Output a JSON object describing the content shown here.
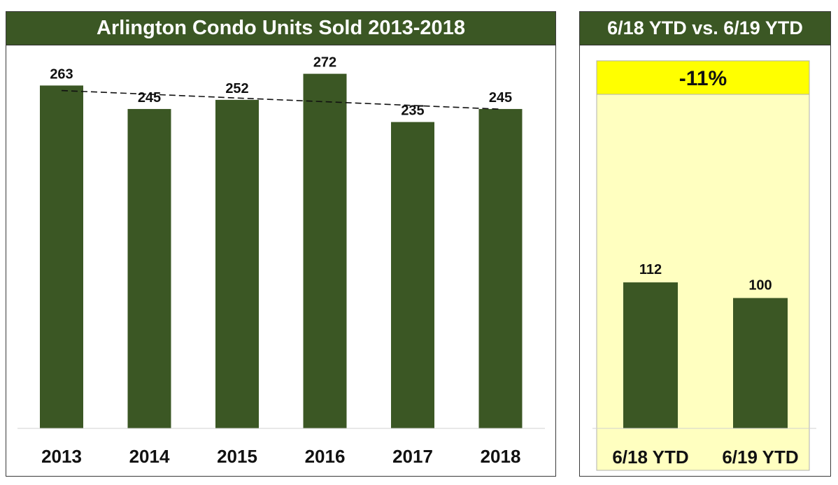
{
  "chart_data": [
    {
      "type": "bar",
      "title": "Arlington Condo Units Sold 2013-2018",
      "categories": [
        "2013",
        "2014",
        "2015",
        "2016",
        "2017",
        "2018"
      ],
      "values": [
        263,
        245,
        252,
        272,
        235,
        245
      ],
      "trendline": "linear",
      "ylim": [
        0,
        290
      ],
      "grid": false,
      "colors": {
        "bar": "#3b5724",
        "title_bg": "#3b5724",
        "trendline": "#111111"
      }
    },
    {
      "type": "bar",
      "title": "6/18 YTD vs. 6/19 YTD",
      "categories": [
        "6/18 YTD",
        "6/19 YTD"
      ],
      "values": [
        112,
        100
      ],
      "change_label": "-11%",
      "ylim": [
        0,
        290
      ],
      "grid": false,
      "colors": {
        "bar": "#3b5724",
        "plot_bg": "#ffffc0",
        "change_bg": "#ffff00"
      }
    }
  ]
}
